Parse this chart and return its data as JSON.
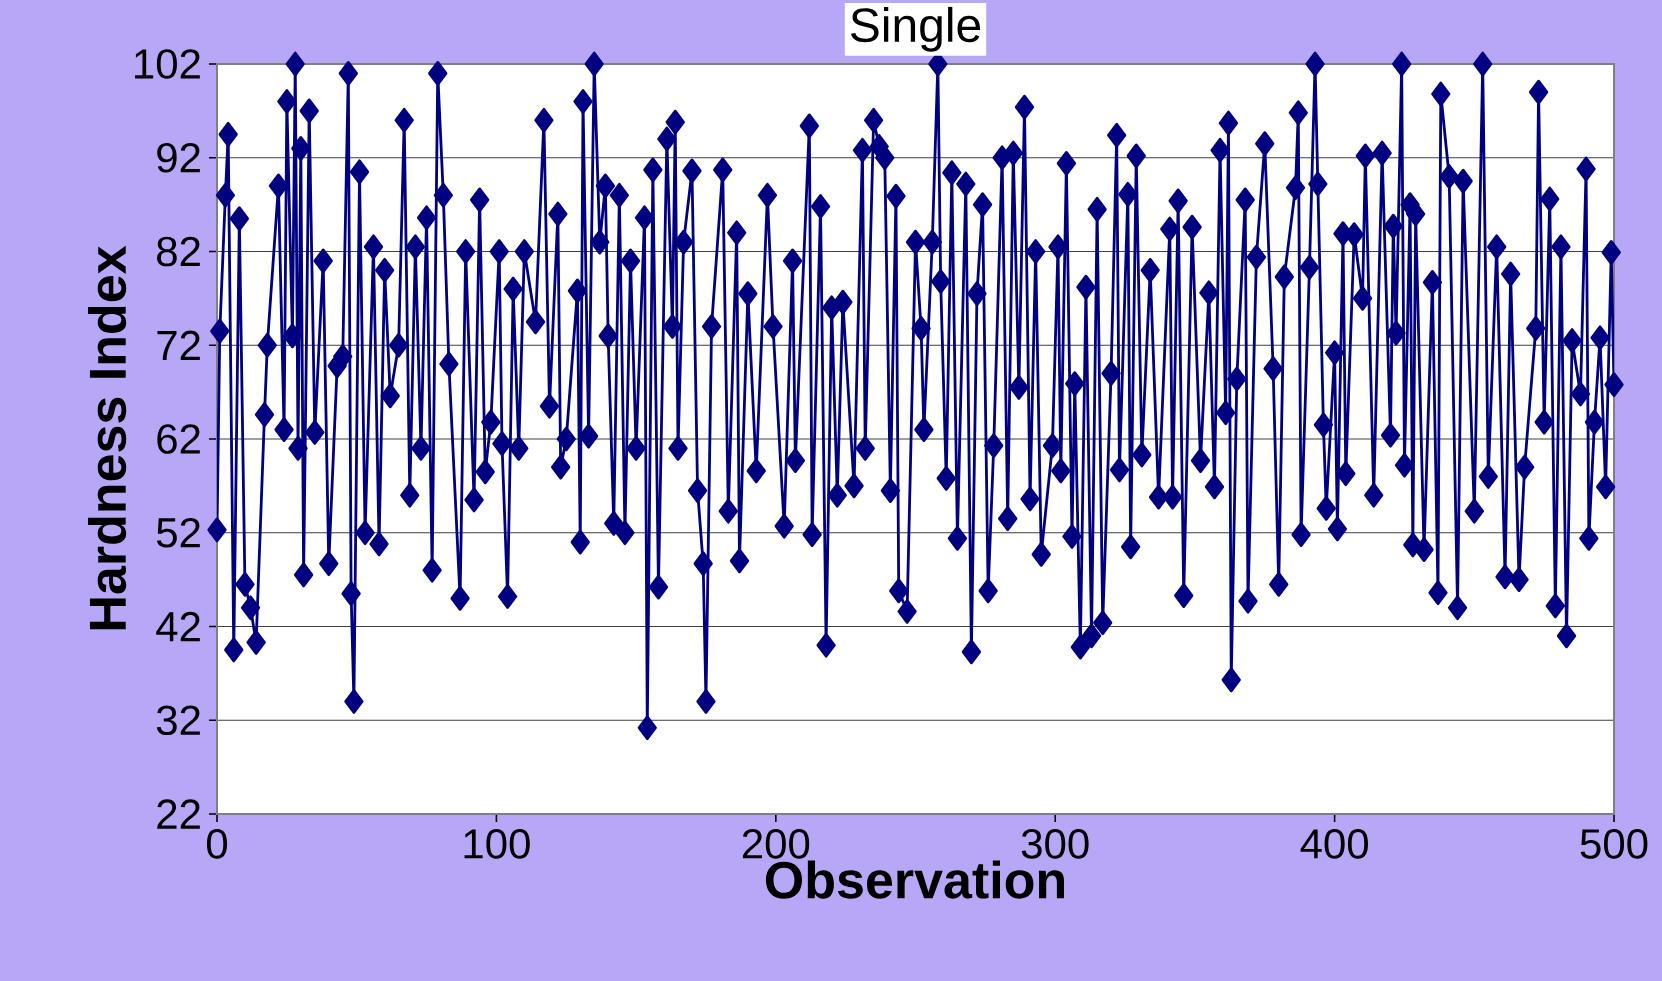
{
  "chart_data": {
    "type": "line",
    "title": "Single",
    "xlabel": "Observation",
    "ylabel": "Hardness Index",
    "xlim": [
      0,
      500
    ],
    "xticks": [
      0,
      100,
      200,
      300,
      400,
      500
    ],
    "ylim": [
      22,
      102
    ],
    "yticks": [
      22,
      32,
      42,
      52,
      62,
      72,
      82,
      92,
      102
    ],
    "grid": "y",
    "marker": "diamond",
    "line_style": "solid",
    "series": [
      {
        "color": "#000080",
        "x": [
          0,
          1,
          3,
          4,
          6,
          8,
          10,
          12,
          14,
          17,
          18,
          22,
          24,
          25,
          27,
          28,
          29,
          30,
          31,
          33,
          35,
          38,
          40,
          43,
          45,
          47,
          48,
          49,
          51,
          53,
          56,
          58,
          60,
          62,
          65,
          67,
          69,
          71,
          73,
          75,
          77,
          79,
          81,
          83,
          87,
          89,
          92,
          94,
          96,
          98,
          101,
          102,
          104,
          106,
          108,
          110,
          114,
          117,
          119,
          122,
          123,
          125,
          129,
          130,
          131,
          133,
          135,
          137,
          139,
          140,
          142,
          144,
          146,
          148,
          150,
          153,
          154,
          156,
          158,
          161,
          163,
          164,
          165,
          167,
          170,
          172,
          174,
          175,
          177,
          181,
          183,
          186,
          187,
          190,
          193,
          197,
          199,
          203,
          206,
          207,
          212,
          213,
          216,
          218,
          220,
          222,
          224,
          228,
          231,
          232,
          235,
          237,
          239,
          241,
          243,
          244,
          247,
          250,
          252,
          253,
          256,
          258,
          259,
          261,
          263,
          265,
          268,
          270,
          272,
          274,
          276,
          278,
          281,
          283,
          285,
          287,
          289,
          291,
          293,
          295,
          299,
          301,
          302,
          304,
          306,
          307,
          309,
          311,
          313,
          315,
          317,
          320,
          322,
          323,
          326,
          327,
          329,
          331,
          334,
          337,
          341,
          342,
          344,
          346,
          349,
          352,
          355,
          357,
          359,
          361,
          362,
          363,
          365,
          368,
          369,
          372,
          375,
          378,
          380,
          382,
          386,
          387,
          388,
          391,
          393,
          394,
          396,
          397,
          400,
          401,
          403,
          404,
          407,
          410,
          411,
          414,
          417,
          420,
          421,
          422,
          424,
          425,
          427,
          428,
          429,
          432,
          435,
          437,
          438,
          441,
          444,
          446,
          450,
          453,
          455,
          458,
          461,
          463,
          466,
          468,
          472,
          473,
          475,
          477,
          479,
          481,
          483,
          485,
          488,
          490,
          491,
          493,
          495,
          497,
          499,
          500
        ],
        "values": [
          52.3,
          73.5,
          88,
          94.5,
          39.5,
          85.5,
          46.5,
          44,
          40.3,
          64.6,
          72,
          89,
          63,
          98,
          73,
          102,
          61,
          93,
          47.5,
          97,
          62.7,
          81,
          48.7,
          69.8,
          70.8,
          101,
          45.5,
          34,
          90.5,
          52,
          82.5,
          50.8,
          80,
          66.6,
          72,
          96,
          56,
          82.5,
          61,
          85.6,
          48,
          101,
          88,
          70,
          45,
          82,
          55.5,
          87.5,
          58.5,
          63.8,
          82,
          61.5,
          45.2,
          78,
          61,
          82,
          74.5,
          96,
          65.5,
          86,
          59,
          62,
          77.8,
          51,
          98,
          62.3,
          102,
          83,
          89,
          73,
          53,
          88,
          52,
          81,
          61,
          85.6,
          31.2,
          90.7,
          46.2,
          94,
          74,
          95.8,
          61,
          83,
          90.6,
          56.5,
          48.7,
          34,
          74,
          90.7,
          54.3,
          84,
          49,
          77.5,
          58.6,
          88,
          74,
          52.7,
          81,
          59.7,
          95.4,
          51.8,
          86.8,
          40,
          76,
          56,
          76.6,
          57,
          92.8,
          61,
          96,
          93.2,
          92,
          56.5,
          87.9,
          45.8,
          43.6,
          83,
          73.8,
          63,
          83,
          102,
          78.8,
          57.8,
          90.4,
          51.4,
          89.2,
          39.3,
          77.5,
          87,
          45.8,
          61.3,
          92,
          53.5,
          92.5,
          67.5,
          97.4,
          55.6,
          82,
          49.7,
          61.3,
          82.5,
          58.6,
          91.4,
          51.6,
          67.9,
          39.8,
          78.2,
          41,
          86.5,
          42.4,
          69,
          94.4,
          58.7,
          88.1,
          50.5,
          92.2,
          60.3,
          80,
          55.8,
          84.4,
          55.8,
          87.4,
          45.3,
          84.6,
          59.7,
          77.6,
          56.9,
          92.8,
          64.8,
          95.7,
          36.3,
          68.4,
          87.5,
          44.7,
          81.4,
          93.5,
          69.5,
          46.5,
          79.3,
          88.8,
          96.8,
          51.8,
          80.3,
          102,
          89.2,
          63.5,
          54.6,
          71.2,
          52.4,
          83.9,
          58.3,
          83.8,
          77,
          92.2,
          56,
          92.5,
          62.4,
          84.7,
          73.3,
          102,
          59.2,
          87,
          50.7,
          86,
          50.2,
          78.7,
          45.6,
          98.8,
          90,
          44,
          89.5,
          54.3,
          102,
          58,
          82.5,
          47.3,
          79.6,
          47,
          59,
          73.8,
          99,
          63.8,
          87.6,
          44.2,
          82.5,
          41,
          72.5,
          66.8,
          90.8,
          51.4,
          63.8,
          72.8,
          56.9,
          81.9,
          67.8
        ]
      }
    ]
  }
}
